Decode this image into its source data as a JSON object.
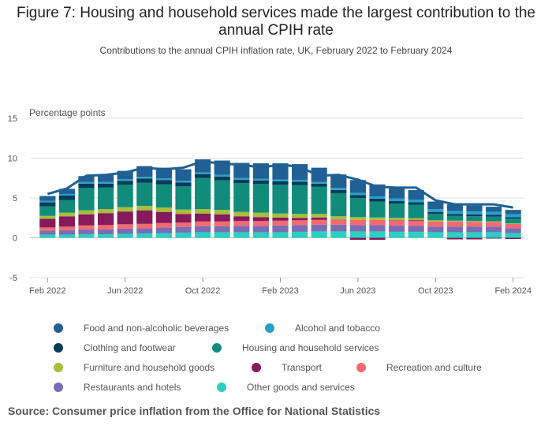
{
  "header": {
    "title": "Figure 7: Housing and household services made the largest contribution to the annual CPIH rate",
    "subtitle": "Contributions to the annual CPIH inflation rate, UK, February 2022 to February 2024"
  },
  "footer": {
    "source": "Source: Consumer price inflation from the Office for National Statistics"
  },
  "chart_data": {
    "type": "bar",
    "stacked": true,
    "ylabel": "Percentage points",
    "ylim": [
      -5,
      15
    ],
    "yticks": [
      15,
      10,
      5,
      0,
      -5
    ],
    "grid": true,
    "legend_position": "bottom",
    "categories": [
      "Feb 2022",
      "Mar 2022",
      "Apr 2022",
      "May 2022",
      "Jun 2022",
      "Jul 2022",
      "Aug 2022",
      "Sep 2022",
      "Oct 2022",
      "Nov 2022",
      "Dec 2022",
      "Jan 2023",
      "Feb 2023",
      "Mar 2023",
      "Apr 2023",
      "May 2023",
      "Jun 2023",
      "Jul 2023",
      "Aug 2023",
      "Sep 2023",
      "Oct 2023",
      "Nov 2023",
      "Dec 2023",
      "Jan 2024",
      "Feb 2024"
    ],
    "xticklabels": [
      "Feb 2022",
      "Jun 2022",
      "Oct 2022",
      "Feb 2023",
      "Jun 2023",
      "Oct 2023",
      "Feb 2024"
    ],
    "xtick_indices": [
      0,
      4,
      8,
      12,
      16,
      20,
      24
    ],
    "series": [
      {
        "name": "Other goods and services",
        "color": "#2ad1c0",
        "values": [
          0.4,
          0.4,
          0.45,
          0.45,
          0.5,
          0.55,
          0.6,
          0.65,
          0.7,
          0.7,
          0.7,
          0.7,
          0.7,
          0.75,
          0.8,
          0.8,
          0.8,
          0.8,
          0.75,
          0.75,
          0.7,
          0.7,
          0.7,
          0.7,
          0.6
        ]
      },
      {
        "name": "Restaurants and hotels",
        "color": "#7a6cb5",
        "values": [
          0.5,
          0.55,
          0.6,
          0.6,
          0.65,
          0.65,
          0.7,
          0.7,
          0.75,
          0.75,
          0.8,
          0.8,
          0.85,
          0.85,
          0.85,
          0.85,
          0.8,
          0.8,
          0.8,
          0.75,
          0.7,
          0.7,
          0.7,
          0.7,
          0.6
        ]
      },
      {
        "name": "Recreation and culture",
        "color": "#f46a6f",
        "values": [
          0.4,
          0.45,
          0.5,
          0.55,
          0.55,
          0.55,
          0.55,
          0.55,
          0.6,
          0.6,
          0.6,
          0.6,
          0.6,
          0.6,
          0.6,
          0.6,
          0.65,
          0.65,
          0.65,
          0.65,
          0.65,
          0.65,
          0.6,
          0.6,
          0.55
        ]
      },
      {
        "name": "Transport",
        "color": "#871a5b",
        "values": [
          1.1,
          1.3,
          1.4,
          1.5,
          1.6,
          1.7,
          1.4,
          1.1,
          1.0,
          0.9,
          0.6,
          0.5,
          0.4,
          0.3,
          0.3,
          0.05,
          -0.25,
          -0.25,
          0.05,
          0.1,
          0.0,
          -0.2,
          -0.2,
          -0.1,
          -0.15
        ]
      },
      {
        "name": "Furniture and household goods",
        "color": "#a8bd3a",
        "values": [
          0.35,
          0.45,
          0.5,
          0.5,
          0.55,
          0.55,
          0.55,
          0.55,
          0.55,
          0.55,
          0.55,
          0.55,
          0.5,
          0.5,
          0.45,
          0.4,
          0.35,
          0.3,
          0.25,
          0.2,
          0.15,
          0.1,
          0.1,
          0.05,
          0.05
        ]
      },
      {
        "name": "Housing and household services",
        "color": "#118c7b",
        "values": [
          1.2,
          1.6,
          2.8,
          2.7,
          2.8,
          2.9,
          2.9,
          2.9,
          3.9,
          3.7,
          3.6,
          3.6,
          3.6,
          3.6,
          3.4,
          2.9,
          2.4,
          2.0,
          1.8,
          1.7,
          0.8,
          0.6,
          0.6,
          0.6,
          0.6
        ]
      },
      {
        "name": "Clothing and footwear",
        "color": "#003c57",
        "values": [
          0.5,
          0.55,
          0.55,
          0.5,
          0.5,
          0.55,
          0.55,
          0.5,
          0.5,
          0.5,
          0.45,
          0.45,
          0.45,
          0.45,
          0.4,
          0.4,
          0.35,
          0.35,
          0.3,
          0.3,
          0.25,
          0.25,
          0.25,
          0.25,
          0.2
        ]
      },
      {
        "name": "Alcohol and tobacco",
        "color": "#27a0cc",
        "values": [
          0.2,
          0.2,
          0.2,
          0.2,
          0.2,
          0.2,
          0.2,
          0.2,
          0.2,
          0.2,
          0.2,
          0.2,
          0.2,
          0.2,
          0.2,
          0.25,
          0.3,
          0.3,
          0.35,
          0.35,
          0.35,
          0.35,
          0.35,
          0.35,
          0.35
        ]
      },
      {
        "name": "Food and non-alcoholic beverages",
        "color": "#206095",
        "values": [
          0.6,
          0.65,
          0.75,
          0.9,
          1.05,
          1.35,
          1.35,
          1.45,
          1.65,
          1.8,
          1.9,
          1.95,
          2.05,
          2.0,
          1.8,
          1.7,
          1.6,
          1.5,
          1.3,
          1.2,
          0.95,
          0.85,
          0.75,
          0.65,
          0.55
        ]
      }
    ],
    "total_line": {
      "name": "CPIH annual rate",
      "color": "#206095",
      "values": [
        5.5,
        6.2,
        7.8,
        7.9,
        8.2,
        8.8,
        8.6,
        8.8,
        9.6,
        9.3,
        9.2,
        8.8,
        9.2,
        8.9,
        7.8,
        7.9,
        7.3,
        6.4,
        6.3,
        6.3,
        4.7,
        4.2,
        4.2,
        4.2,
        3.8
      ]
    }
  },
  "legend": {
    "items": [
      {
        "label": "Food and non-alcoholic beverages",
        "color": "#206095"
      },
      {
        "label": "Alcohol and tobacco",
        "color": "#27a0cc"
      },
      {
        "label": "Clothing and footwear",
        "color": "#003c57"
      },
      {
        "label": "Housing and household services",
        "color": "#118c7b"
      },
      {
        "label": "Furniture and household goods",
        "color": "#a8bd3a"
      },
      {
        "label": "Transport",
        "color": "#871a5b"
      },
      {
        "label": "Recreation and culture",
        "color": "#f46a6f"
      },
      {
        "label": "Restaurants and hotels",
        "color": "#7a6cb5"
      },
      {
        "label": "Other goods and services",
        "color": "#2ad1c0"
      }
    ]
  }
}
